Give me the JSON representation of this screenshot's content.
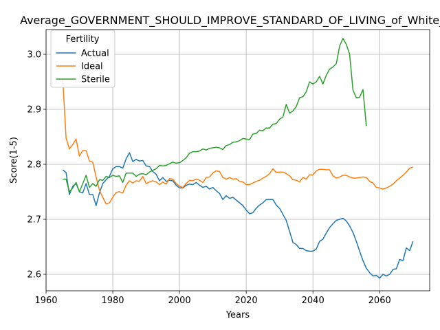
{
  "chart_data": {
    "type": "line",
    "title": "Average_GOVERNMENT_SHOULD_IMPROVE_STANDARD_OF_LIVING_of_White_M",
    "xlabel": "Years",
    "ylabel": "Score(1-5)",
    "xlim": [
      1960,
      2075
    ],
    "ylim": [
      2.57,
      3.045
    ],
    "xticks": [
      1960,
      1980,
      2000,
      2020,
      2040,
      2060
    ],
    "yticks": [
      2.6,
      2.7,
      2.8,
      2.9,
      3.0
    ],
    "grid": true,
    "legend": {
      "title": "Fertility",
      "placement": "top-left"
    },
    "series": [
      {
        "name": "Actual",
        "color": "#1f77b4",
        "points": [
          [
            1965,
            2.79
          ],
          [
            1966,
            2.785
          ],
          [
            1967,
            2.745
          ],
          [
            1968,
            2.76
          ],
          [
            1969,
            2.765
          ],
          [
            1970,
            2.75
          ],
          [
            1971,
            2.748
          ],
          [
            1972,
            2.765
          ],
          [
            1973,
            2.745
          ],
          [
            1974,
            2.745
          ],
          [
            1975,
            2.725
          ],
          [
            1976,
            2.748
          ],
          [
            1977,
            2.765
          ],
          [
            1978,
            2.772
          ],
          [
            1979,
            2.778
          ],
          [
            1980,
            2.792
          ],
          [
            1981,
            2.796
          ],
          [
            1982,
            2.796
          ],
          [
            1983,
            2.793
          ],
          [
            1984,
            2.81
          ],
          [
            1985,
            2.821
          ],
          [
            1986,
            2.805
          ],
          [
            1987,
            2.809
          ],
          [
            1988,
            2.806
          ],
          [
            1989,
            2.807
          ],
          [
            1990,
            2.797
          ],
          [
            1991,
            2.796
          ],
          [
            1992,
            2.787
          ],
          [
            1993,
            2.782
          ],
          [
            1994,
            2.77
          ],
          [
            1995,
            2.776
          ],
          [
            1996,
            2.769
          ],
          [
            1997,
            2.771
          ],
          [
            1998,
            2.77
          ],
          [
            1999,
            2.762
          ],
          [
            2000,
            2.757
          ],
          [
            2001,
            2.757
          ],
          [
            2002,
            2.762
          ],
          [
            2003,
            2.764
          ],
          [
            2004,
            2.763
          ],
          [
            2005,
            2.767
          ],
          [
            2006,
            2.762
          ],
          [
            2007,
            2.758
          ],
          [
            2008,
            2.76
          ],
          [
            2009,
            2.755
          ],
          [
            2010,
            2.758
          ],
          [
            2011,
            2.752
          ],
          [
            2012,
            2.747
          ],
          [
            2013,
            2.736
          ],
          [
            2014,
            2.743
          ],
          [
            2015,
            2.738
          ],
          [
            2016,
            2.74
          ],
          [
            2017,
            2.735
          ],
          [
            2018,
            2.73
          ],
          [
            2019,
            2.725
          ],
          [
            2020,
            2.717
          ],
          [
            2021,
            2.71
          ],
          [
            2022,
            2.712
          ],
          [
            2023,
            2.72
          ],
          [
            2024,
            2.726
          ],
          [
            2025,
            2.73
          ],
          [
            2026,
            2.736
          ],
          [
            2027,
            2.736
          ],
          [
            2028,
            2.736
          ],
          [
            2029,
            2.726
          ],
          [
            2030,
            2.72
          ],
          [
            2031,
            2.709
          ],
          [
            2032,
            2.698
          ],
          [
            2033,
            2.678
          ],
          [
            2034,
            2.658
          ],
          [
            2035,
            2.654
          ],
          [
            2036,
            2.647
          ],
          [
            2037,
            2.647
          ],
          [
            2038,
            2.643
          ],
          [
            2039,
            2.642
          ],
          [
            2040,
            2.642
          ],
          [
            2041,
            2.646
          ],
          [
            2042,
            2.66
          ],
          [
            2043,
            2.664
          ],
          [
            2044,
            2.675
          ],
          [
            2045,
            2.685
          ],
          [
            2046,
            2.692
          ],
          [
            2047,
            2.698
          ],
          [
            2048,
            2.7
          ],
          [
            2049,
            2.702
          ],
          [
            2050,
            2.697
          ],
          [
            2051,
            2.688
          ],
          [
            2052,
            2.676
          ],
          [
            2053,
            2.66
          ],
          [
            2054,
            2.642
          ],
          [
            2055,
            2.625
          ],
          [
            2056,
            2.611
          ],
          [
            2057,
            2.603
          ],
          [
            2058,
            2.597
          ],
          [
            2059,
            2.598
          ],
          [
            2060,
            2.593
          ],
          [
            2061,
            2.6
          ],
          [
            2062,
            2.597
          ],
          [
            2063,
            2.6
          ],
          [
            2064,
            2.609
          ],
          [
            2065,
            2.61
          ],
          [
            2066,
            2.627
          ],
          [
            2067,
            2.625
          ],
          [
            2068,
            2.648
          ],
          [
            2069,
            2.643
          ],
          [
            2070,
            2.66
          ]
        ]
      },
      {
        "name": "Ideal",
        "color": "#ff7f0e",
        "points": [
          [
            1965,
            2.955
          ],
          [
            1966,
            2.848
          ],
          [
            1967,
            2.828
          ],
          [
            1968,
            2.836
          ],
          [
            1969,
            2.846
          ],
          [
            1970,
            2.815
          ],
          [
            1971,
            2.825
          ],
          [
            1972,
            2.825
          ],
          [
            1973,
            2.806
          ],
          [
            1974,
            2.804
          ],
          [
            1975,
            2.777
          ],
          [
            1976,
            2.753
          ],
          [
            1977,
            2.74
          ],
          [
            1978,
            2.728
          ],
          [
            1979,
            2.73
          ],
          [
            1980,
            2.74
          ],
          [
            1981,
            2.749
          ],
          [
            1982,
            2.75
          ],
          [
            1983,
            2.748
          ],
          [
            1984,
            2.762
          ],
          [
            1985,
            2.77
          ],
          [
            1986,
            2.766
          ],
          [
            1987,
            2.77
          ],
          [
            1988,
            2.769
          ],
          [
            1989,
            2.778
          ],
          [
            1990,
            2.765
          ],
          [
            1991,
            2.768
          ],
          [
            1992,
            2.77
          ],
          [
            1993,
            2.768
          ],
          [
            1994,
            2.763
          ],
          [
            1995,
            2.768
          ],
          [
            1996,
            2.764
          ],
          [
            1997,
            2.774
          ],
          [
            1998,
            2.773
          ],
          [
            1999,
            2.765
          ],
          [
            2000,
            2.76
          ],
          [
            2001,
            2.758
          ],
          [
            2002,
            2.765
          ],
          [
            2003,
            2.771
          ],
          [
            2004,
            2.77
          ],
          [
            2005,
            2.773
          ],
          [
            2006,
            2.771
          ],
          [
            2007,
            2.767
          ],
          [
            2008,
            2.776
          ],
          [
            2009,
            2.777
          ],
          [
            2010,
            2.784
          ],
          [
            2011,
            2.788
          ],
          [
            2012,
            2.787
          ],
          [
            2013,
            2.776
          ],
          [
            2014,
            2.773
          ],
          [
            2015,
            2.776
          ],
          [
            2016,
            2.773
          ],
          [
            2017,
            2.774
          ],
          [
            2018,
            2.769
          ],
          [
            2019,
            2.768
          ],
          [
            2020,
            2.763
          ],
          [
            2021,
            2.763
          ],
          [
            2022,
            2.766
          ],
          [
            2023,
            2.769
          ],
          [
            2024,
            2.771
          ],
          [
            2025,
            2.775
          ],
          [
            2026,
            2.778
          ],
          [
            2027,
            2.783
          ],
          [
            2028,
            2.792
          ],
          [
            2029,
            2.785
          ],
          [
            2030,
            2.786
          ],
          [
            2031,
            2.786
          ],
          [
            2032,
            2.783
          ],
          [
            2033,
            2.779
          ],
          [
            2034,
            2.772
          ],
          [
            2035,
            2.771
          ],
          [
            2036,
            2.768
          ],
          [
            2037,
            2.776
          ],
          [
            2038,
            2.773
          ],
          [
            2039,
            2.781
          ],
          [
            2040,
            2.781
          ],
          [
            2041,
            2.788
          ],
          [
            2042,
            2.791
          ],
          [
            2043,
            2.791
          ],
          [
            2044,
            2.79
          ],
          [
            2045,
            2.79
          ],
          [
            2046,
            2.779
          ],
          [
            2047,
            2.775
          ],
          [
            2048,
            2.777
          ],
          [
            2049,
            2.78
          ],
          [
            2050,
            2.78
          ],
          [
            2051,
            2.777
          ],
          [
            2052,
            2.775
          ],
          [
            2053,
            2.775
          ],
          [
            2054,
            2.776
          ],
          [
            2055,
            2.777
          ],
          [
            2056,
            2.776
          ],
          [
            2057,
            2.769
          ],
          [
            2058,
            2.766
          ],
          [
            2059,
            2.758
          ],
          [
            2060,
            2.757
          ],
          [
            2061,
            2.755
          ],
          [
            2062,
            2.757
          ],
          [
            2063,
            2.76
          ],
          [
            2064,
            2.764
          ],
          [
            2065,
            2.77
          ],
          [
            2066,
            2.775
          ],
          [
            2067,
            2.78
          ],
          [
            2068,
            2.786
          ],
          [
            2069,
            2.793
          ],
          [
            2070,
            2.795
          ]
        ]
      },
      {
        "name": "Sterile",
        "color": "#2ca02c",
        "points": [
          [
            1965,
            2.773
          ],
          [
            1966,
            2.773
          ],
          [
            1967,
            2.75
          ],
          [
            1968,
            2.757
          ],
          [
            1969,
            2.767
          ],
          [
            1970,
            2.75
          ],
          [
            1971,
            2.765
          ],
          [
            1972,
            2.78
          ],
          [
            1973,
            2.758
          ],
          [
            1974,
            2.765
          ],
          [
            1975,
            2.76
          ],
          [
            1976,
            2.772
          ],
          [
            1977,
            2.771
          ],
          [
            1978,
            2.778
          ],
          [
            1979,
            2.776
          ],
          [
            1980,
            2.78
          ],
          [
            1981,
            2.778
          ],
          [
            1982,
            2.779
          ],
          [
            1983,
            2.767
          ],
          [
            1984,
            2.784
          ],
          [
            1985,
            2.784
          ],
          [
            1986,
            2.784
          ],
          [
            1987,
            2.778
          ],
          [
            1988,
            2.782
          ],
          [
            1989,
            2.783
          ],
          [
            1990,
            2.781
          ],
          [
            1991,
            2.786
          ],
          [
            1992,
            2.789
          ],
          [
            1993,
            2.792
          ],
          [
            1994,
            2.798
          ],
          [
            1995,
            2.797
          ],
          [
            1996,
            2.798
          ],
          [
            1997,
            2.801
          ],
          [
            1998,
            2.804
          ],
          [
            1999,
            2.802
          ],
          [
            2000,
            2.803
          ],
          [
            2001,
            2.807
          ],
          [
            2002,
            2.812
          ],
          [
            2003,
            2.82
          ],
          [
            2004,
            2.823
          ],
          [
            2005,
            2.823
          ],
          [
            2006,
            2.824
          ],
          [
            2007,
            2.828
          ],
          [
            2008,
            2.826
          ],
          [
            2009,
            2.829
          ],
          [
            2010,
            2.83
          ],
          [
            2011,
            2.831
          ],
          [
            2012,
            2.83
          ],
          [
            2013,
            2.827
          ],
          [
            2014,
            2.834
          ],
          [
            2015,
            2.836
          ],
          [
            2016,
            2.84
          ],
          [
            2017,
            2.841
          ],
          [
            2018,
            2.843
          ],
          [
            2019,
            2.847
          ],
          [
            2020,
            2.846
          ],
          [
            2021,
            2.845
          ],
          [
            2022,
            2.855
          ],
          [
            2023,
            2.856
          ],
          [
            2024,
            2.862
          ],
          [
            2025,
            2.861
          ],
          [
            2026,
            2.866
          ],
          [
            2027,
            2.866
          ],
          [
            2028,
            2.873
          ],
          [
            2029,
            2.874
          ],
          [
            2030,
            2.882
          ],
          [
            2031,
            2.886
          ],
          [
            2032,
            2.909
          ],
          [
            2033,
            2.893
          ],
          [
            2034,
            2.897
          ],
          [
            2035,
            2.905
          ],
          [
            2036,
            2.921
          ],
          [
            2037,
            2.923
          ],
          [
            2038,
            2.932
          ],
          [
            2039,
            2.95
          ],
          [
            2040,
            2.946
          ],
          [
            2041,
            2.95
          ],
          [
            2042,
            2.96
          ],
          [
            2043,
            2.946
          ],
          [
            2044,
            2.962
          ],
          [
            2045,
            2.973
          ],
          [
            2046,
            2.977
          ],
          [
            2047,
            2.983
          ],
          [
            2048,
            3.015
          ],
          [
            2049,
            3.029
          ],
          [
            2050,
            3.018
          ],
          [
            2051,
            3.0
          ],
          [
            2052,
            2.935
          ],
          [
            2053,
            2.921
          ],
          [
            2054,
            2.922
          ],
          [
            2055,
            2.936
          ],
          [
            2056,
            2.87
          ]
        ]
      }
    ]
  }
}
